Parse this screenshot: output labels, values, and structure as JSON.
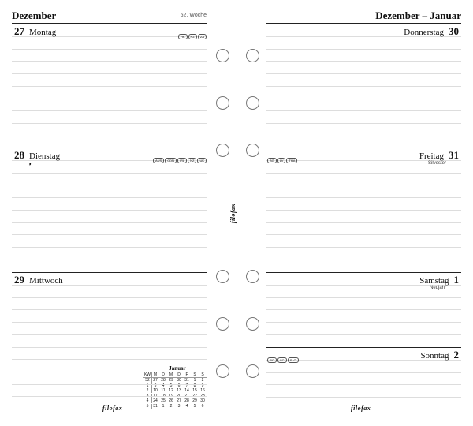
{
  "left": {
    "title": "Dezember",
    "week": "52. Woche",
    "days": [
      {
        "number": "27",
        "name": "Montag",
        "badges": [
          "HK",
          "NZ",
          "ZA"
        ]
      },
      {
        "number": "28",
        "name": "Dienstag",
        "badges": [
          "AUS",
          "CDN",
          "IRL",
          "NZ",
          "UK"
        ],
        "symbol": "◑"
      },
      {
        "number": "29",
        "name": "Mittwoch",
        "badges": []
      }
    ]
  },
  "right": {
    "title": "Dezember – Januar",
    "days": [
      {
        "number": "30",
        "name": "Donnerstag",
        "badges": []
      },
      {
        "number": "31",
        "name": "Freitag",
        "badges": [
          "BG",
          "LV",
          "THA"
        ],
        "note": "Silvester"
      },
      {
        "number": "1",
        "name": "Samstag",
        "badges": [],
        "note": "Neujahr"
      },
      {
        "number": "2",
        "name": "Sonntag",
        "badges": [
          "RO",
          "SC",
          "SLO"
        ]
      }
    ]
  },
  "calendar": {
    "title": "Januar",
    "header": [
      "KW",
      "M",
      "D",
      "M",
      "D",
      "F",
      "S",
      "S"
    ],
    "rows": [
      [
        "52",
        "27",
        "28",
        "29",
        "30",
        "31",
        "1",
        "2"
      ],
      [
        "1",
        "3",
        "4",
        "5",
        "6",
        "7",
        "8",
        "9"
      ],
      [
        "2",
        "10",
        "11",
        "12",
        "13",
        "14",
        "15",
        "16"
      ],
      [
        "3",
        "17",
        "18",
        "19",
        "20",
        "21",
        "22",
        "23"
      ],
      [
        "4",
        "24",
        "25",
        "26",
        "27",
        "28",
        "29",
        "30"
      ],
      [
        "5",
        "31",
        "1",
        "2",
        "3",
        "4",
        "5",
        "6"
      ]
    ]
  },
  "brand": "filofax"
}
